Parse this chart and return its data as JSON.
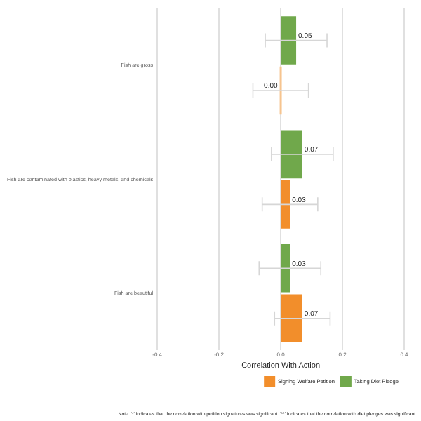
{
  "chart_data": {
    "type": "bar",
    "orientation": "horizontal",
    "xlabel": "Correlation With Action",
    "categories": [
      "Fish are gross",
      "Fish are contaminated with plastics, heavy metals, and chemicals",
      "Fish are beautiful"
    ],
    "series": [
      {
        "name": "Signing Welfare Petition",
        "color": "#f28e2b",
        "colors": [
          "#f6c48f",
          "#f28e2b",
          "#f28e2b"
        ],
        "values": [
          0.0,
          0.03,
          0.07
        ],
        "errors": [
          0.09,
          0.09,
          0.09
        ],
        "value_labels": [
          "0.00",
          "0.03",
          "0.07"
        ]
      },
      {
        "name": "Taking Diet Pledge",
        "color": "#70a84b",
        "values": [
          0.05,
          0.07,
          0.03
        ],
        "errors": [
          0.1,
          0.1,
          0.1
        ],
        "value_labels": [
          "0.05",
          "0.07",
          "0.03"
        ]
      }
    ],
    "xlim": [
      -0.4,
      0.4
    ],
    "xticks": [
      {
        "value": -0.4,
        "label": "-0.4"
      },
      {
        "value": -0.2,
        "label": "-0.2"
      },
      {
        "value": 0,
        "label": "0.0"
      },
      {
        "value": 0.2,
        "label": "0.2"
      },
      {
        "value": 0.4,
        "label": "0.4"
      }
    ],
    "grid": "x",
    "legend": "bottom right",
    "annotations": [
      "Note: '*' indicates that the correlation with petition signatures was significant. '**' indicates that the correlation with diet pledges was significant."
    ]
  }
}
